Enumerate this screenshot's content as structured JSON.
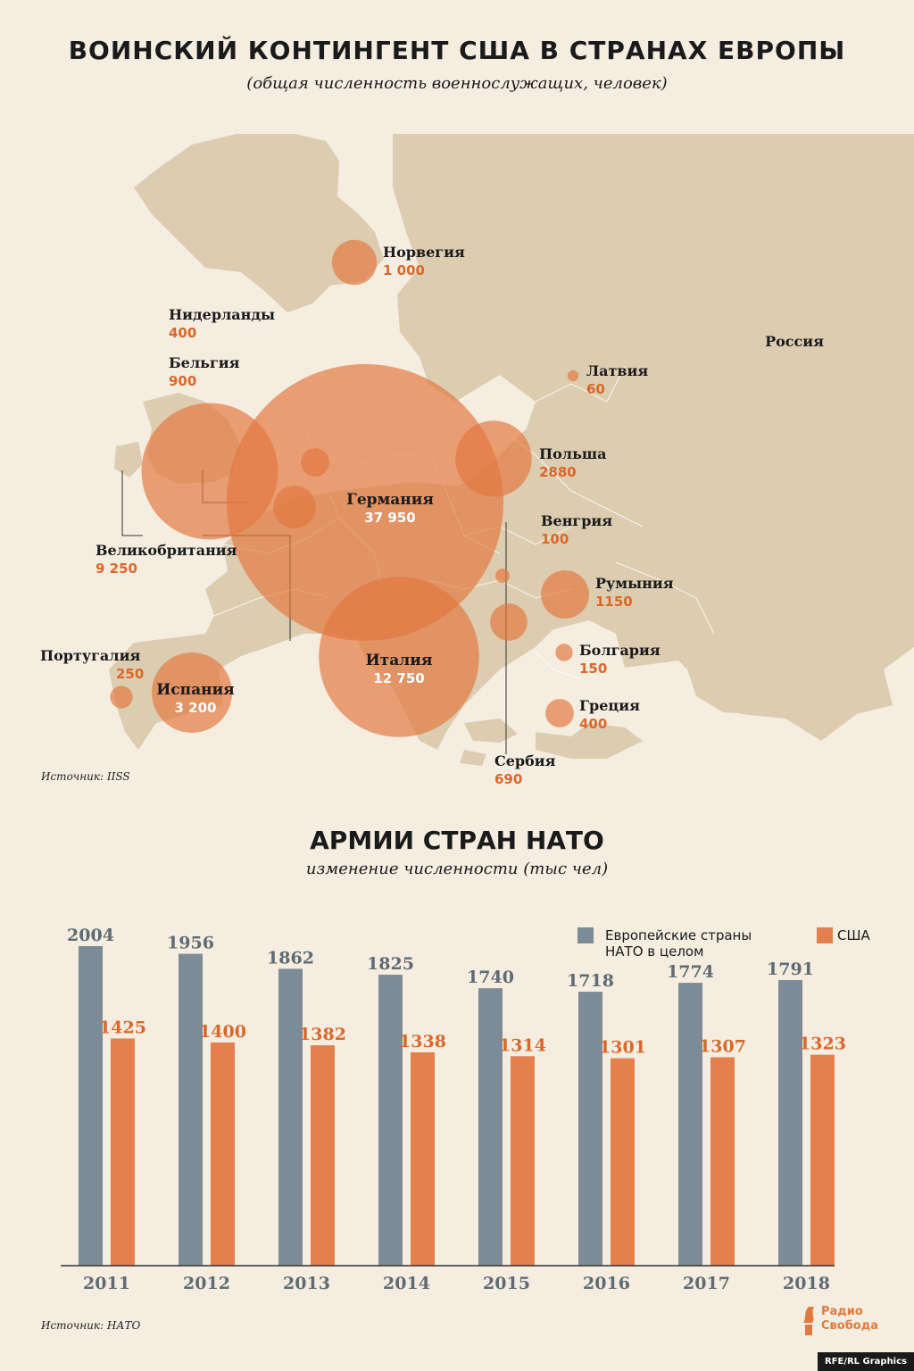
{
  "title": "ВОИНСКИЙ КОНТИНГЕНТ США В СТРАНАХ ЕВРОПЫ",
  "subtitle": "(общая численность военнослужащих, человек)",
  "map_source": "Источник: IISS",
  "bar_title": "АРМИИ СТРАН НАТО",
  "bar_subtitle": "изменение численности (тыс чел)",
  "bar_source": "Источник: НАТО",
  "logo_line1": "Радио",
  "logo_line2": "Свобода",
  "credit": "RFE/RL Graphics",
  "colors": {
    "background": "#f5ede0",
    "land": "#dccdb0",
    "bubble": "#e3773f",
    "nato_bar": "#7d8b97",
    "us_bar": "#e3804d",
    "value_orange": "#d9682a",
    "value_grey": "#5f6b74"
  },
  "chart_data": [
    {
      "type": "bubble-map",
      "title": "ВОИНСКИЙ КОНТИНГЕНТ США В СТРАНАХ ЕВРОПЫ",
      "subtitle": "(общая численность военнослужащих, человек)",
      "extra_labels": [
        "Россия"
      ],
      "points": [
        {
          "country": "Германия",
          "value": 37950,
          "label": "37 950"
        },
        {
          "country": "Италия",
          "value": 12750,
          "label": "12 750"
        },
        {
          "country": "Великобритания",
          "value": 9250,
          "label": "9 250"
        },
        {
          "country": "Испания",
          "value": 3200,
          "label": "3 200"
        },
        {
          "country": "Польша",
          "value": 2880,
          "label": "2880"
        },
        {
          "country": "Румыния",
          "value": 1150,
          "label": "1150"
        },
        {
          "country": "Норвегия",
          "value": 1000,
          "label": "1 000"
        },
        {
          "country": "Бельгия",
          "value": 900,
          "label": "900"
        },
        {
          "country": "Сербия",
          "value": 690,
          "label": "690"
        },
        {
          "country": "Нидерланды",
          "value": 400,
          "label": "400"
        },
        {
          "country": "Греция",
          "value": 400,
          "label": "400"
        },
        {
          "country": "Португалия",
          "value": 250,
          "label": "250"
        },
        {
          "country": "Болгария",
          "value": 150,
          "label": "150"
        },
        {
          "country": "Венгрия",
          "value": 100,
          "label": "100"
        },
        {
          "country": "Латвия",
          "value": 60,
          "label": "60"
        }
      ]
    },
    {
      "type": "bar",
      "title": "АРМИИ СТРАН НАТО",
      "subtitle": "изменение численности (тыс чел)",
      "categories": [
        "2011",
        "2012",
        "2013",
        "2014",
        "2015",
        "2016",
        "2017",
        "2018"
      ],
      "series": [
        {
          "name": "Европейские страны НАТО в целом",
          "values": [
            2004,
            1956,
            1862,
            1825,
            1740,
            1718,
            1774,
            1791
          ]
        },
        {
          "name": "США",
          "values": [
            1425,
            1400,
            1382,
            1338,
            1314,
            1301,
            1307,
            1323
          ]
        }
      ],
      "legend_position": "top-right",
      "ylim": [
        0,
        2004
      ]
    }
  ]
}
